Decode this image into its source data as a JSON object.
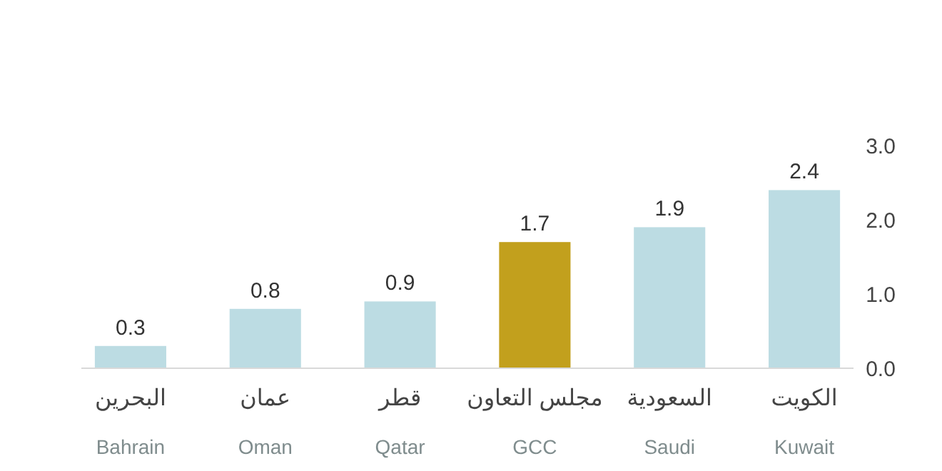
{
  "chart_data": {
    "type": "bar",
    "categories": [
      "البحرين\nBahrain",
      "عمان\nOman",
      "قطر\nQatar",
      "مجلس التعاون\nGCC",
      "السعودية\nSaudi",
      "الكويت\nKuwait"
    ],
    "values": [
      0.3,
      0.8,
      0.9,
      1.7,
      1.9,
      2.4
    ],
    "colors": [
      "#bcdce3",
      "#bcdce3",
      "#bcdce3",
      "#c2a01d",
      "#bcdce3",
      "#bcdce3"
    ],
    "ylim": [
      0,
      3
    ],
    "yticks": [
      {
        "value": 0,
        "label": "0.0"
      },
      {
        "value": 1,
        "label": "1.0"
      },
      {
        "value": 2,
        "label": "2.0"
      },
      {
        "value": 3,
        "label": "3.0"
      }
    ],
    "data_labels": true,
    "grid": false
  }
}
